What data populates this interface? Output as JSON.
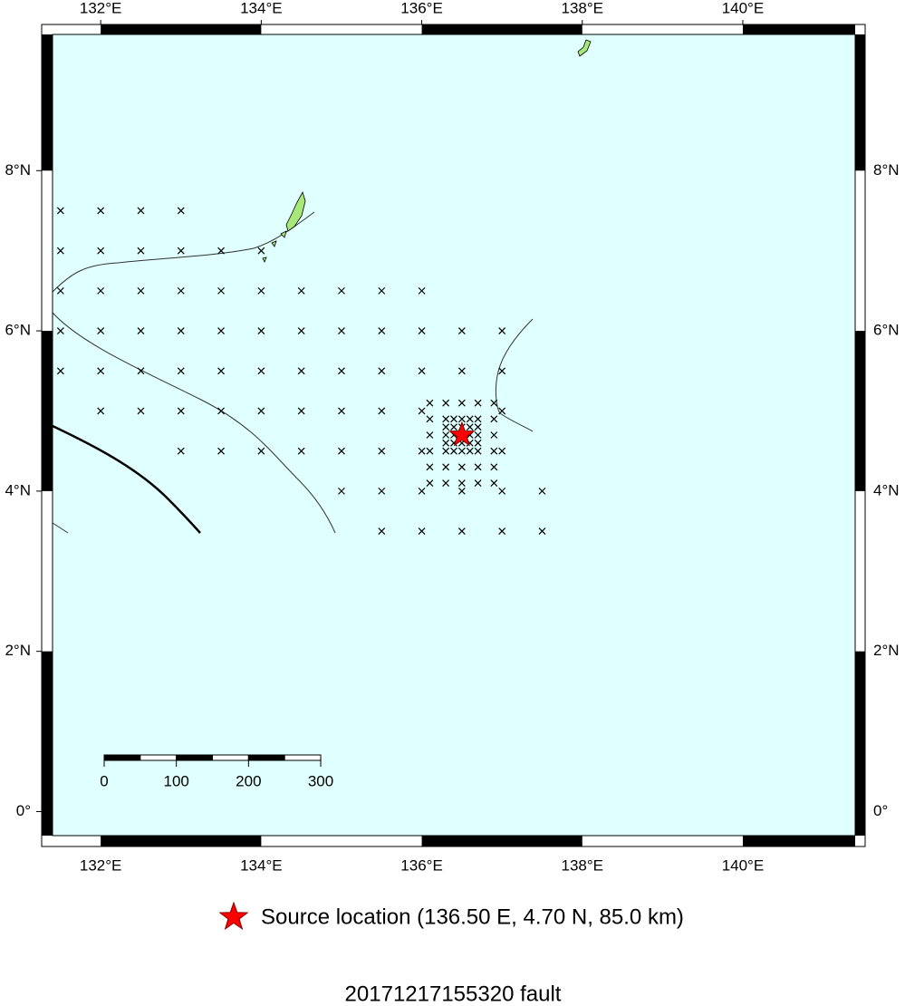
{
  "map": {
    "type": "map",
    "title": "20171217155320 fault",
    "legend": "Source location (136.50 E, 4.70 N, 85.0 km)",
    "source": {
      "lon": 136.5,
      "lat": 4.7,
      "color": "#ff0000"
    },
    "sea_color": "#e0ffff",
    "land_color": "#a8e878",
    "xlim": [
      131.4,
      141.4
    ],
    "ylim": [
      -0.3,
      9.7
    ],
    "xticks": [
      {
        "value": 132,
        "label": "132°E"
      },
      {
        "value": 134,
        "label": "134°E"
      },
      {
        "value": 136,
        "label": "136°E"
      },
      {
        "value": 138,
        "label": "138°E"
      },
      {
        "value": 140,
        "label": "140°E"
      }
    ],
    "yticks": [
      {
        "value": 0,
        "label": "0°"
      },
      {
        "value": 2,
        "label": "2°N"
      },
      {
        "value": 4,
        "label": "4°N"
      },
      {
        "value": 6,
        "label": "6°N"
      },
      {
        "value": 8,
        "label": "8°N"
      }
    ],
    "scale_bar": {
      "ticks": [
        0,
        100,
        200,
        300
      ]
    },
    "grid_points": [
      {
        "lat": 7.5,
        "lons": [
          131.5,
          132,
          132.5,
          133
        ]
      },
      {
        "lat": 7.0,
        "lons": [
          131.5,
          132,
          132.5,
          133,
          133.5,
          134
        ]
      },
      {
        "lat": 6.5,
        "lons": [
          131.5,
          132,
          132.5,
          133,
          133.5,
          134,
          134.5,
          135,
          135.5,
          136
        ]
      },
      {
        "lat": 6.0,
        "lons": [
          131.5,
          132,
          132.5,
          133,
          133.5,
          134,
          134.5,
          135,
          135.5,
          136,
          136.5,
          137
        ]
      },
      {
        "lat": 5.5,
        "lons": [
          131.5,
          132,
          132.5,
          133,
          133.5,
          134,
          134.5,
          135,
          135.5,
          136,
          136.5,
          137
        ]
      },
      {
        "lat": 5.0,
        "lons": [
          132,
          132.5,
          133,
          133.5,
          134,
          134.5,
          135,
          135.5,
          136,
          137
        ]
      },
      {
        "lat": 4.5,
        "lons": [
          133,
          133.5,
          134,
          134.5,
          135,
          135.5,
          136,
          137
        ]
      },
      {
        "lat": 4.0,
        "lons": [
          135,
          135.5,
          136,
          136.5,
          137,
          137.5
        ]
      },
      {
        "lat": 3.5,
        "lons": [
          135.5,
          136,
          136.5,
          137,
          137.5
        ]
      },
      {
        "lat": 5.1,
        "lons": [
          136.1,
          136.3,
          136.5,
          136.7,
          136.9
        ]
      },
      {
        "lat": 4.9,
        "lons": [
          136.1,
          136.3,
          136.4,
          136.5,
          136.6,
          136.7,
          136.9
        ]
      },
      {
        "lat": 4.8,
        "lons": [
          136.3,
          136.4,
          136.5,
          136.6,
          136.7
        ]
      },
      {
        "lat": 4.7,
        "lons": [
          136.1,
          136.3,
          136.4,
          136.6,
          136.7,
          136.9
        ]
      },
      {
        "lat": 4.6,
        "lons": [
          136.3,
          136.4,
          136.5,
          136.6,
          136.7
        ]
      },
      {
        "lat": 4.5,
        "lons": [
          136.1,
          136.3,
          136.4,
          136.5,
          136.6,
          136.7,
          136.9
        ]
      },
      {
        "lat": 4.3,
        "lons": [
          136.1,
          136.3,
          136.5,
          136.7,
          136.9
        ]
      },
      {
        "lat": 4.1,
        "lons": [
          136.1,
          136.3,
          136.5,
          136.7,
          136.9
        ]
      }
    ]
  }
}
